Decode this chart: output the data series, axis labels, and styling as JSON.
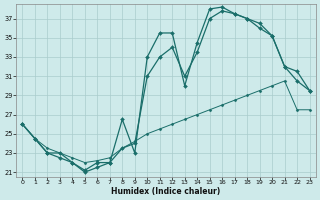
{
  "xlabel": "Humidex (Indice chaleur)",
  "background_color": "#ceeaea",
  "grid_color": "#aacccc",
  "line_color": "#1a6e6a",
  "xlim": [
    -0.5,
    23.5
  ],
  "ylim": [
    20.5,
    38.5
  ],
  "xticks": [
    0,
    1,
    2,
    3,
    4,
    5,
    6,
    7,
    8,
    9,
    10,
    11,
    12,
    13,
    14,
    15,
    16,
    17,
    18,
    19,
    20,
    21,
    22,
    23
  ],
  "yticks": [
    21,
    23,
    25,
    27,
    29,
    31,
    33,
    35,
    37
  ],
  "line1_x": [
    0,
    1,
    2,
    3,
    4,
    5,
    6,
    7,
    8,
    9,
    10,
    11,
    12,
    13,
    14,
    15,
    16,
    17,
    18,
    19,
    20,
    21,
    22,
    23
  ],
  "line1_y": [
    26.0,
    24.5,
    23.0,
    22.5,
    22.0,
    21.0,
    21.5,
    22.0,
    26.5,
    23.0,
    33.0,
    35.5,
    35.5,
    30.0,
    34.5,
    38.0,
    38.2,
    37.5,
    37.0,
    36.0,
    35.2,
    32.0,
    31.5,
    29.5
  ],
  "line2_x": [
    0,
    1,
    2,
    3,
    4,
    5,
    6,
    7,
    8,
    9,
    10,
    11,
    12,
    13,
    14,
    15,
    16,
    17,
    18,
    19,
    20,
    21,
    22,
    23
  ],
  "line2_y": [
    26.0,
    24.5,
    23.0,
    23.0,
    22.0,
    21.2,
    22.0,
    22.0,
    23.5,
    24.0,
    31.0,
    33.0,
    34.0,
    31.0,
    33.5,
    37.0,
    37.8,
    37.5,
    37.0,
    36.5,
    35.2,
    32.0,
    30.5,
    29.5
  ],
  "line3_x": [
    0,
    1,
    2,
    3,
    4,
    5,
    6,
    7,
    8,
    9,
    10,
    11,
    12,
    13,
    14,
    15,
    16,
    17,
    18,
    19,
    20,
    21,
    22,
    23
  ],
  "line3_y": [
    26.0,
    24.5,
    23.5,
    23.0,
    22.5,
    22.0,
    22.2,
    22.5,
    23.5,
    24.2,
    25.0,
    25.5,
    26.0,
    26.5,
    27.0,
    27.5,
    28.0,
    28.5,
    29.0,
    29.5,
    30.0,
    30.5,
    27.5,
    27.5
  ]
}
